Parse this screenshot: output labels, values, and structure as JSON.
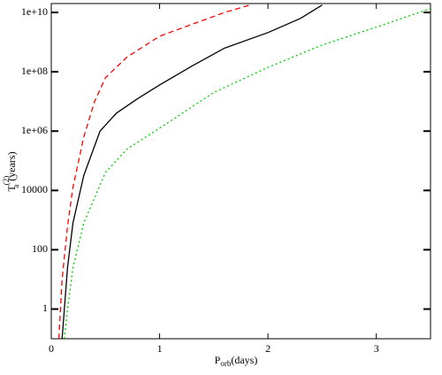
{
  "chart_data": {
    "type": "line",
    "xlabel": {
      "main": "P",
      "sub": "orb",
      "unit": "(days)"
    },
    "ylabel": {
      "main": "T",
      "sup": "(2)",
      "sub": "a",
      "unit": "(years)"
    },
    "ylog": true,
    "xlim": [
      0,
      3.5
    ],
    "xticks": [
      0,
      1,
      2,
      3
    ],
    "ylim": [
      0.1,
      20000000000.0
    ],
    "yticks": [
      1,
      100,
      10000,
      {
        "value": 1000000,
        "label": "1e+06"
      },
      {
        "value": 100000000,
        "label": "1e+08"
      },
      {
        "value": 10000000000,
        "label": "1e+10"
      }
    ],
    "series": [
      {
        "color": "#ff0000",
        "dash": "6,4",
        "x": [
          0.07,
          0.1,
          0.15,
          0.2,
          0.3,
          0.4,
          0.5,
          0.7,
          1,
          1.3,
          1.6,
          1.85
        ],
        "values": [
          0.1,
          10,
          630,
          12600,
          630000,
          10000000,
          63000000,
          316000000,
          1580000000,
          4000000000,
          10000000000,
          18600000000
        ]
      },
      {
        "color": "#000000",
        "dash": "none",
        "x": [
          0.1,
          0.15,
          0.2,
          0.3,
          0.45,
          0.6,
          0.8,
          1,
          1.3,
          1.6,
          2,
          2.3,
          2.5
        ],
        "values": [
          0.1,
          25,
          800,
          32000,
          1000000,
          4000000,
          12600000,
          36000000,
          158000000,
          630000000,
          2100000000,
          6300000000,
          17800000000
        ]
      },
      {
        "color": "#00cc00",
        "dash": "2,3",
        "x": [
          0.12,
          0.15,
          0.2,
          0.3,
          0.5,
          0.7,
          1,
          1.5,
          2,
          2.5,
          3,
          3.5
        ],
        "values": [
          0.1,
          1,
          25,
          800,
          40000,
          250000,
          1260000,
          20000000,
          141000000,
          800000000,
          3200000000,
          13500000000
        ]
      }
    ]
  }
}
